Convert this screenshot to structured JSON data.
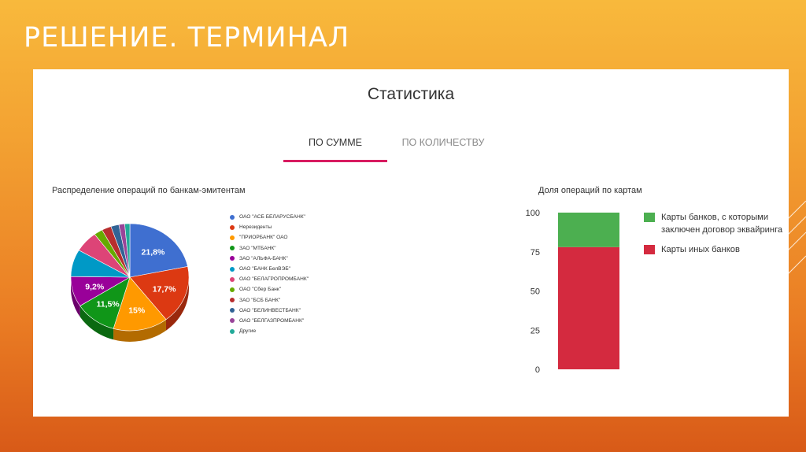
{
  "slide": {
    "title": "РЕШЕНИЕ. ТЕРМИНАЛ"
  },
  "panel": {
    "title": "Статистика",
    "tabs": [
      {
        "label": "ПО СУММЕ",
        "active": true
      },
      {
        "label": "ПО КОЛИЧЕСТВУ",
        "active": false
      }
    ]
  },
  "colors": {
    "accent": "#d81b60",
    "background": "#f3a232",
    "panel": "#ffffff"
  },
  "chart_data": [
    {
      "type": "pie",
      "title": "Распределение операций по банкам-эмитентам",
      "legend_position": "right",
      "slices": [
        {
          "label": "ОАО \"АСБ БЕЛАРУСБАНК\"",
          "value": 21.8,
          "display": "21,8%",
          "color": "#3f6fd0"
        },
        {
          "label": "Нерезиденты",
          "value": 17.7,
          "display": "17,7%",
          "color": "#dc3912"
        },
        {
          "label": "\"ПРИОРБАНК\" ОАО",
          "value": 15.0,
          "display": "15%",
          "color": "#ff9900"
        },
        {
          "label": "ЗАО \"МТБАНК\"",
          "value": 11.5,
          "display": "11,5%",
          "color": "#109618"
        },
        {
          "label": "ЗАО \"АЛЬФА-БАНК\"",
          "value": 9.2,
          "display": "9,2%",
          "color": "#990099"
        },
        {
          "label": "ОАО \"БАНК БелВЭБ\"",
          "value": 8.2,
          "display": "",
          "color": "#0099c6"
        },
        {
          "label": "ОАО \"БЕЛАГРОПРОМБАНК\"",
          "value": 6.4,
          "display": "",
          "color": "#dd4477"
        },
        {
          "label": "ОАО \"Сбер Банк\"",
          "value": 2.4,
          "display": "",
          "color": "#66aa00"
        },
        {
          "label": "ЗАО \"БСБ БАНК\"",
          "value": 2.6,
          "display": "",
          "color": "#b82e2e"
        },
        {
          "label": "ОАО \"БЕЛИНВЕСТБАНК\"",
          "value": 2.2,
          "display": "",
          "color": "#316395"
        },
        {
          "label": "ОАО \"БЕЛГАЗПРОМБАНК\"",
          "value": 1.6,
          "display": "",
          "color": "#994499"
        },
        {
          "label": "Другие",
          "value": 1.4,
          "display": "",
          "color": "#22aa99"
        }
      ]
    },
    {
      "type": "bar",
      "stacked": true,
      "title": "Доля операций по картам",
      "legend_position": "right",
      "ylim": [
        0,
        100
      ],
      "yticks": [
        0,
        25,
        50,
        75,
        100
      ],
      "series": [
        {
          "name": "Карты иных банков",
          "value": 78,
          "color": "#d42a3f"
        },
        {
          "name": "Карты банков, с которыми заключен договор эквайринга",
          "value": 22,
          "color": "#4caf50"
        }
      ]
    }
  ]
}
